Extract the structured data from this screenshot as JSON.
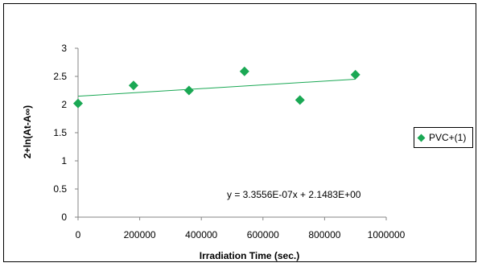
{
  "chart_data": {
    "type": "scatter",
    "title": "",
    "xlabel": "Irradiation Time (sec.)",
    "ylabel": "2+ln(At-A∞)",
    "xlim": [
      0,
      1000000
    ],
    "ylim": [
      0,
      3
    ],
    "x_ticks": [
      0,
      200000,
      400000,
      600000,
      800000,
      1000000
    ],
    "y_ticks": [
      0,
      0.5,
      1,
      1.5,
      2,
      2.5,
      3
    ],
    "x_tick_labels": [
      "0",
      "200000",
      "400000",
      "600000",
      "800000",
      "1000000"
    ],
    "y_tick_labels": [
      "0",
      "0.5",
      "1",
      "1.5",
      "2",
      "2.5",
      "3"
    ],
    "series": [
      {
        "name": "PVC+(1)",
        "color": "#1aa854",
        "marker": "diamond",
        "points": [
          {
            "x": 0,
            "y": 2.02
          },
          {
            "x": 180000,
            "y": 2.34
          },
          {
            "x": 360000,
            "y": 2.25
          },
          {
            "x": 540000,
            "y": 2.59
          },
          {
            "x": 720000,
            "y": 2.08
          },
          {
            "x": 900000,
            "y": 2.53
          }
        ]
      }
    ],
    "trendline": {
      "slope": 3.3556e-07,
      "intercept": 2.1483,
      "x_range": [
        0,
        900000
      ],
      "color": "#1aa854",
      "equation": "y = 3.3556E-07x + 2.1483E+00"
    },
    "grid": false,
    "legend_position": "right"
  }
}
